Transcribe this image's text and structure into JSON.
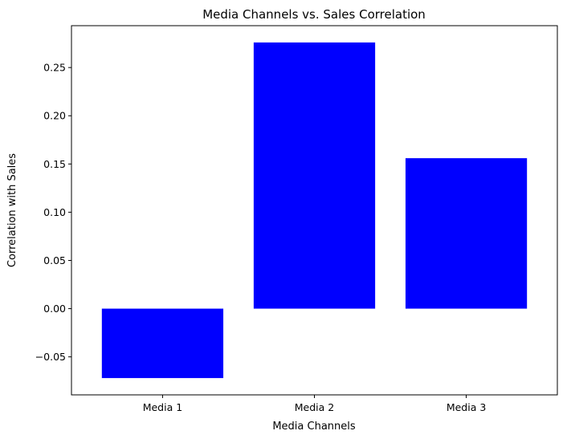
{
  "chart_data": {
    "type": "bar",
    "title": "Media Channels vs. Sales Correlation",
    "xlabel": "Media Channels",
    "ylabel": "Correlation with Sales",
    "categories": [
      "Media 1",
      "Media 2",
      "Media 3"
    ],
    "values": [
      -0.072,
      0.276,
      0.156
    ],
    "ylim": [
      -0.0894,
      0.2934
    ],
    "yticks": [
      -0.05,
      0.0,
      0.05,
      0.1,
      0.15,
      0.2,
      0.25
    ],
    "ytick_labels": [
      "−0.05",
      "0.00",
      "0.05",
      "0.10",
      "0.15",
      "0.20",
      "0.25"
    ],
    "bar_color": "#0000ff",
    "grid": false,
    "legend": false
  }
}
